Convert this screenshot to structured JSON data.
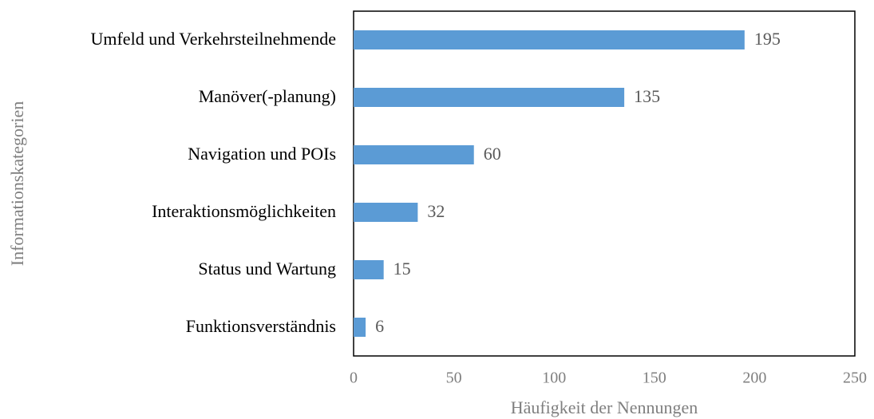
{
  "chart_data": {
    "type": "bar",
    "orientation": "horizontal",
    "categories": [
      "Umfeld und Verkehrsteilnehmende",
      "Manöver(-planung)",
      "Navigation und POIs",
      "Interaktionsmöglichkeiten",
      "Status und Wartung",
      "Funktionsverständnis"
    ],
    "values": [
      195,
      135,
      60,
      32,
      15,
      6
    ],
    "color": "#5b9bd5",
    "xlabel": "Häufigkeit der Nennungen",
    "ylabel": "Informationskategorien",
    "xlim": [
      0,
      250
    ],
    "xticks": [
      0,
      50,
      100,
      150,
      200,
      250
    ],
    "grid": false
  }
}
